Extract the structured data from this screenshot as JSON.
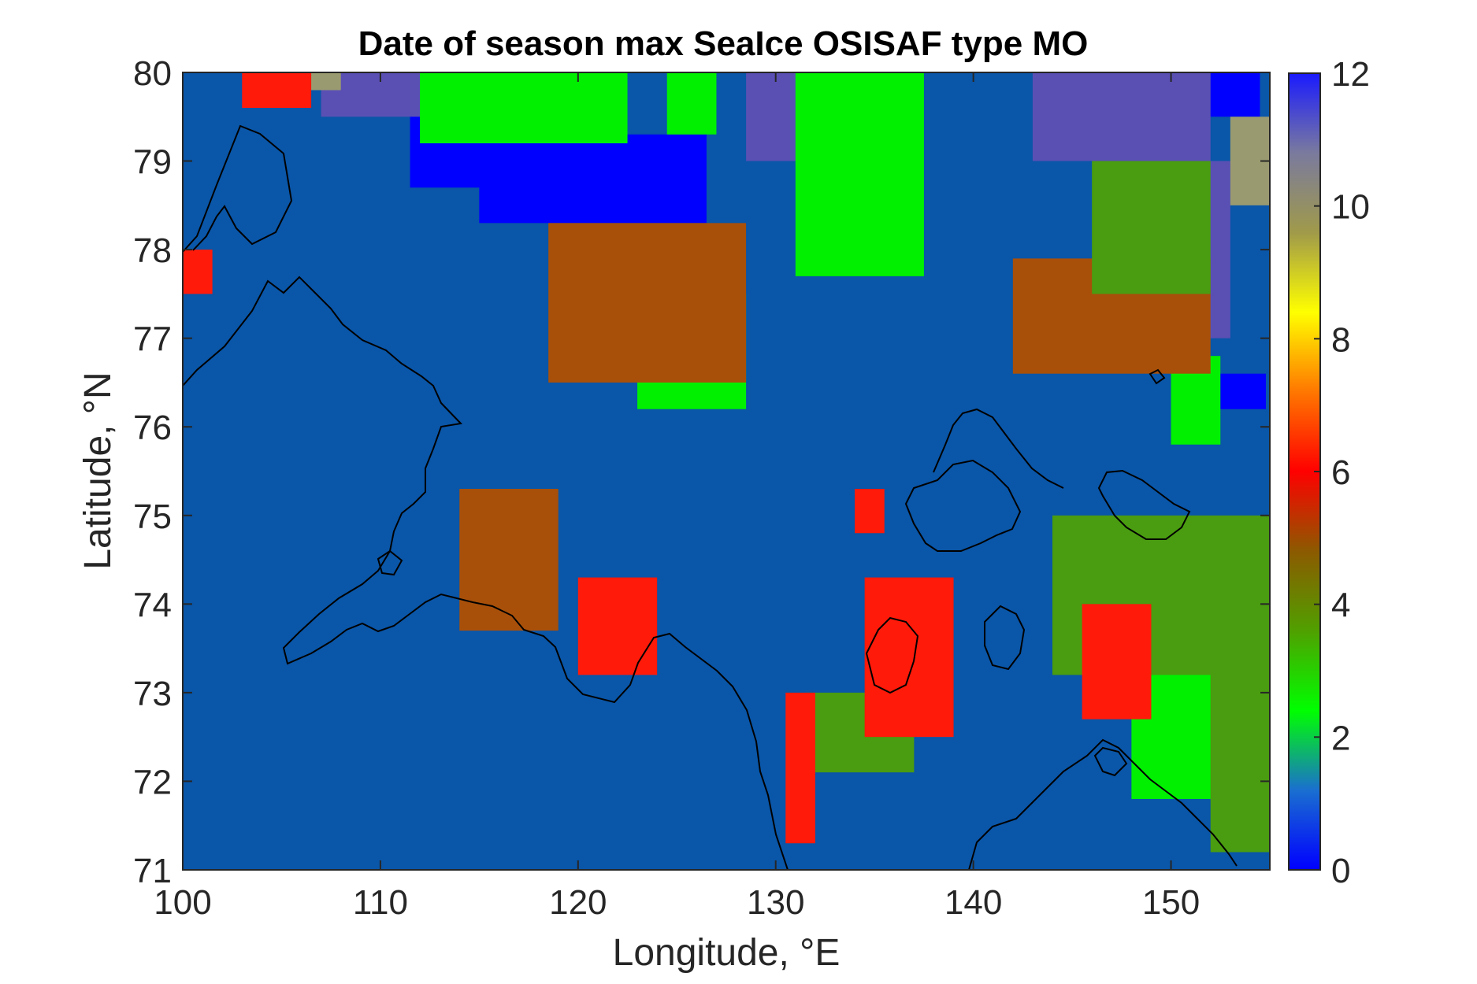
{
  "chart_data": {
    "type": "heatmap",
    "title": "Date of season max SeaIce OSISAF type MO",
    "xlabel": "Longitude, °E",
    "ylabel": "Latitude, °N",
    "xlim": [
      100,
      155
    ],
    "ylim": [
      71,
      80
    ],
    "xticks": [
      "100",
      "110",
      "120",
      "130",
      "140",
      "150"
    ],
    "yticks": [
      "71",
      "72",
      "73",
      "74",
      "75",
      "76",
      "77",
      "78",
      "79",
      "80"
    ],
    "colorbar": {
      "range": [
        0,
        12
      ],
      "ticks": [
        "0",
        "2",
        "4",
        "6",
        "8",
        "10",
        "12"
      ],
      "colormap": [
        "#0000ff",
        "#1a6fd0",
        "#00ff00",
        "#50a000",
        "#8c5a00",
        "#ff0000",
        "#ff7700",
        "#ffff00",
        "#a09a4a",
        "#7a7a9e",
        "#1a1aff"
      ]
    },
    "background_value": 0.8,
    "background_color": "#0a56a8",
    "grid": false,
    "colors": {
      "month_1": "#0a56a8",
      "month_2_3": "#00f000",
      "month_4": "#4a9c10",
      "month_5": "#a8500a",
      "month_6": "#ff1a0a",
      "month_10_11": "#9a9a70",
      "month_11": "#5a50b4",
      "month_12": "#0000ff"
    },
    "regions": [
      {
        "value": 12,
        "lon": [
          111.5,
          117.5
        ],
        "lat": [
          78.7,
          80.0
        ]
      },
      {
        "value": 12,
        "lon": [
          115.0,
          126.5
        ],
        "lat": [
          78.3,
          79.3
        ]
      },
      {
        "value": 12,
        "lon": [
          148.5,
          154.5
        ],
        "lat": [
          79.5,
          80.0
        ]
      },
      {
        "value": 12,
        "lon": [
          151.0,
          154.8
        ],
        "lat": [
          76.2,
          76.6
        ]
      },
      {
        "value": 11,
        "lon": [
          107.0,
          113.0
        ],
        "lat": [
          79.5,
          80.0
        ]
      },
      {
        "value": 11,
        "lon": [
          128.5,
          131.0
        ],
        "lat": [
          79.0,
          80.0
        ]
      },
      {
        "value": 11,
        "lon": [
          143.0,
          152.0
        ],
        "lat": [
          79.0,
          80.0
        ]
      },
      {
        "value": 11,
        "lon": [
          148.5,
          153.0
        ],
        "lat": [
          77.0,
          79.0
        ]
      },
      {
        "value": 10,
        "lon": [
          106.0,
          108.0
        ],
        "lat": [
          79.8,
          80.0
        ]
      },
      {
        "value": 10,
        "lon": [
          153.0,
          155.0
        ],
        "lat": [
          78.5,
          79.5
        ]
      },
      {
        "value": 3,
        "lon": [
          112.0,
          122.5
        ],
        "lat": [
          79.2,
          80.0
        ]
      },
      {
        "value": 3,
        "lon": [
          124.5,
          127.0
        ],
        "lat": [
          79.3,
          80.0
        ]
      },
      {
        "value": 3,
        "lon": [
          131.0,
          137.5
        ],
        "lat": [
          77.7,
          80.0
        ]
      },
      {
        "value": 3,
        "lon": [
          123.0,
          128.5
        ],
        "lat": [
          76.2,
          77.5
        ]
      },
      {
        "value": 3,
        "lon": [
          150.0,
          152.5
        ],
        "lat": [
          75.8,
          76.8
        ]
      },
      {
        "value": 3,
        "lon": [
          148.0,
          152.5
        ],
        "lat": [
          71.8,
          73.5
        ]
      },
      {
        "value": 5,
        "lon": [
          118.5,
          128.5
        ],
        "lat": [
          76.5,
          78.3
        ]
      },
      {
        "value": 5,
        "lon": [
          142.0,
          152.0
        ],
        "lat": [
          76.6,
          77.9
        ]
      },
      {
        "value": 5,
        "lon": [
          114.0,
          119.0
        ],
        "lat": [
          73.7,
          75.3
        ]
      },
      {
        "value": 5,
        "lon": [
          144.0,
          151.0
        ],
        "lat": [
          73.5,
          74.5
        ]
      },
      {
        "value": 4,
        "lon": [
          144.0,
          155.0
        ],
        "lat": [
          73.2,
          75.0
        ]
      },
      {
        "value": 4,
        "lon": [
          152.0,
          155.0
        ],
        "lat": [
          71.2,
          74.0
        ]
      },
      {
        "value": 4,
        "lon": [
          131.5,
          137.0
        ],
        "lat": [
          72.1,
          73.0
        ]
      },
      {
        "value": 4,
        "lon": [
          146.0,
          152.0
        ],
        "lat": [
          77.5,
          79.0
        ]
      },
      {
        "value": 6,
        "lon": [
          120.0,
          124.0
        ],
        "lat": [
          73.2,
          74.3
        ]
      },
      {
        "value": 6,
        "lon": [
          134.5,
          139.0
        ],
        "lat": [
          72.5,
          74.3
        ]
      },
      {
        "value": 6,
        "lon": [
          130.5,
          132.0
        ],
        "lat": [
          71.3,
          73.0
        ]
      },
      {
        "value": 6,
        "lon": [
          145.5,
          149.0
        ],
        "lat": [
          72.7,
          74.0
        ]
      },
      {
        "value": 6,
        "lon": [
          134.0,
          135.5
        ],
        "lat": [
          74.8,
          75.3
        ]
      },
      {
        "value": 6,
        "lon": [
          100.0,
          101.5
        ],
        "lat": [
          77.5,
          78.0
        ]
      },
      {
        "value": 6,
        "lon": [
          103.0,
          106.5
        ],
        "lat": [
          79.6,
          80.0
        ]
      }
    ]
  }
}
